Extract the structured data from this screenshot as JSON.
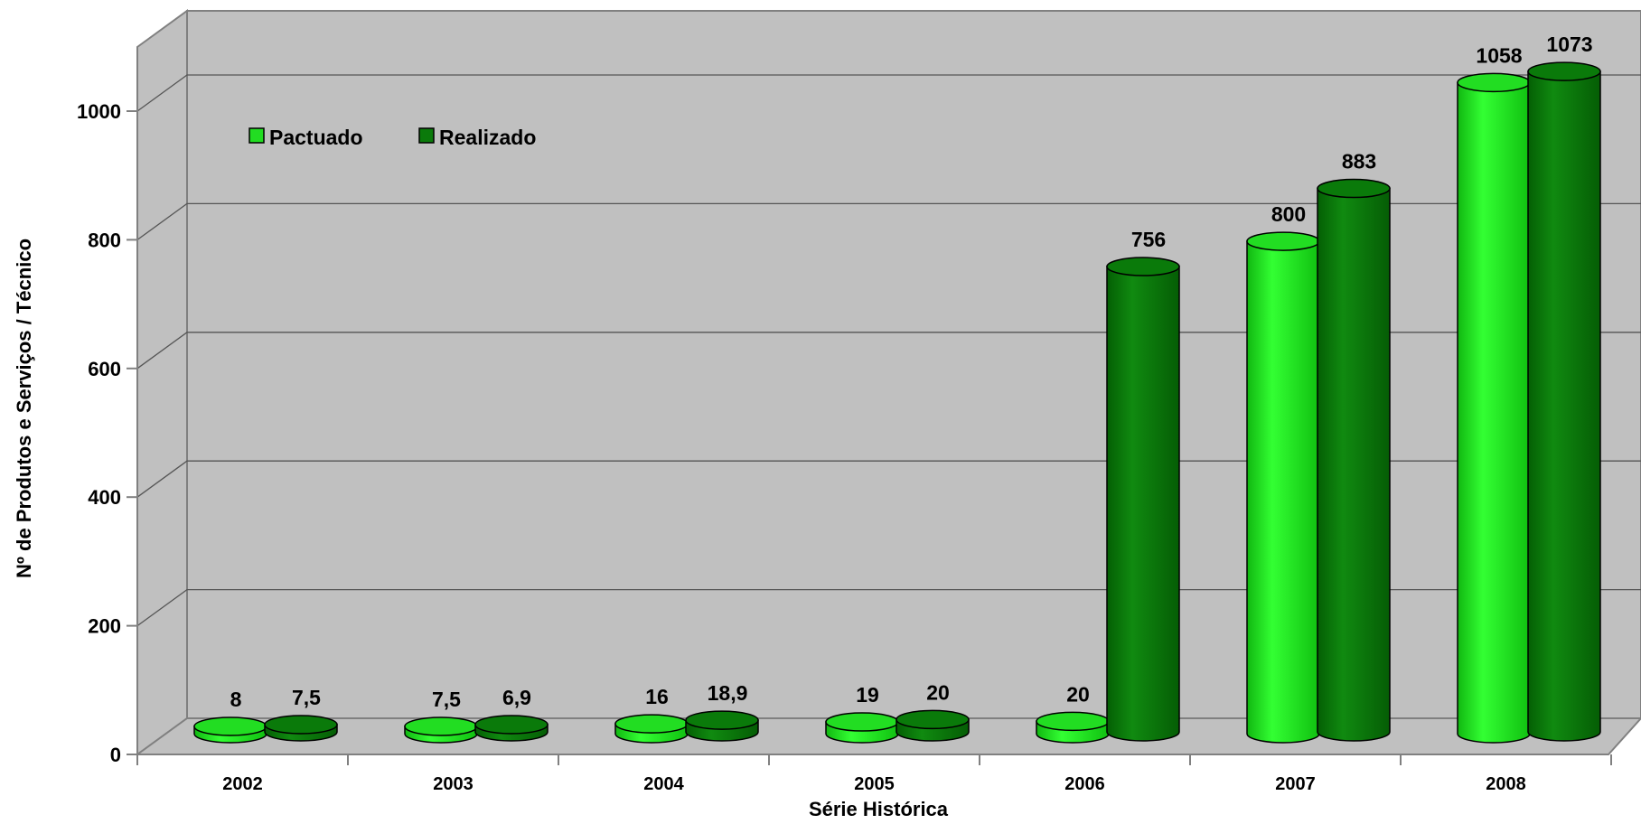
{
  "chart_data": {
    "type": "bar",
    "style": "3d-cylinder",
    "categories": [
      "2002",
      "2003",
      "2004",
      "2005",
      "2006",
      "2007",
      "2008"
    ],
    "series": [
      {
        "name": "Pactuado",
        "color": "#22dd22",
        "values": [
          8,
          7.5,
          16,
          19,
          20,
          800,
          1058
        ],
        "labels": [
          "8",
          "7,5",
          "16",
          "19",
          "20",
          "800",
          "1058"
        ]
      },
      {
        "name": "Realizado",
        "color": "#0a7a0a",
        "values": [
          7.5,
          6.9,
          18.9,
          20,
          756,
          883,
          1073
        ],
        "labels": [
          "7,5",
          "6,9",
          "18,9",
          "20",
          "756",
          "883",
          "1073"
        ]
      }
    ],
    "xlabel": "Série Histórica",
    "ylabel": "Nº de Produtos e Serviços / Técnico",
    "ylim": [
      0,
      1000
    ],
    "yticks": [
      0,
      200,
      400,
      600,
      800,
      1000
    ],
    "grid": true,
    "legend_position": "top-left"
  }
}
